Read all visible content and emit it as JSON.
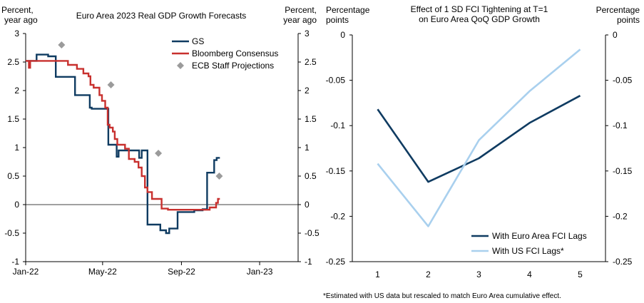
{
  "chart_data": [
    {
      "type": "line",
      "title": "Euro Area 2023 Real GDP Growth Forecasts",
      "ylabel_left": [
        "Percent,",
        "year ago"
      ],
      "ylabel_right": [
        "Percent,",
        "year ago"
      ],
      "ylim": [
        -1,
        3
      ],
      "yticks": [
        -1,
        -0.5,
        0,
        0.5,
        1,
        1.5,
        2,
        2.5,
        3
      ],
      "ytick_labels": [
        "-1",
        "-0.5",
        "0",
        "0.5",
        "1",
        "1.5",
        "2",
        "2.5",
        "3"
      ],
      "x_start": "Jan-22",
      "x_end": "Mar-23",
      "xlim_days": [
        0,
        425
      ],
      "xtick_labels": [
        "Jan-22",
        "May-22",
        "Sep-22",
        "Jan-23"
      ],
      "xtick_days": [
        0,
        120,
        243,
        365
      ],
      "legend_position": "top-right",
      "series": [
        {
          "name": "GS",
          "style": "step",
          "color": "#0f3b61",
          "points": [
            [
              0,
              2.52
            ],
            [
              17,
              2.52
            ],
            [
              17,
              2.63
            ],
            [
              35,
              2.63
            ],
            [
              35,
              2.6
            ],
            [
              47,
              2.6
            ],
            [
              47,
              2.24
            ],
            [
              77,
              2.24
            ],
            [
              77,
              1.92
            ],
            [
              100,
              1.92
            ],
            [
              100,
              1.7
            ],
            [
              103,
              1.7
            ],
            [
              103,
              1.68
            ],
            [
              129,
              1.68
            ],
            [
              129,
              1.05
            ],
            [
              142,
              1.05
            ],
            [
              142,
              0.84
            ],
            [
              145,
              0.84
            ],
            [
              145,
              0.95
            ],
            [
              177,
              0.95
            ],
            [
              177,
              0.82
            ],
            [
              181,
              0.82
            ],
            [
              181,
              0.95
            ],
            [
              186,
              0.95
            ],
            [
              186,
              0.95
            ],
            [
              190,
              0.95
            ],
            [
              190,
              -0.35
            ],
            [
              210,
              -0.35
            ],
            [
              210,
              -0.45
            ],
            [
              219,
              -0.45
            ],
            [
              219,
              -0.5
            ],
            [
              224,
              -0.5
            ],
            [
              224,
              -0.42
            ],
            [
              237,
              -0.42
            ],
            [
              237,
              -0.13
            ],
            [
              263,
              -0.13
            ],
            [
              263,
              -0.1
            ],
            [
              276,
              -0.1
            ],
            [
              276,
              -0.08
            ],
            [
              283,
              -0.08
            ],
            [
              283,
              0.56
            ],
            [
              294,
              0.56
            ],
            [
              294,
              0.78
            ],
            [
              298,
              0.78
            ],
            [
              298,
              0.82
            ],
            [
              303,
              0.82
            ]
          ]
        },
        {
          "name": "Bloomberg Consensus",
          "style": "step",
          "color": "#c8302e",
          "points": [
            [
              0,
              2.52
            ],
            [
              5,
              2.52
            ],
            [
              5,
              2.4
            ],
            [
              7,
              2.4
            ],
            [
              7,
              2.52
            ],
            [
              66,
              2.52
            ],
            [
              66,
              2.45
            ],
            [
              80,
              2.45
            ],
            [
              80,
              2.38
            ],
            [
              90,
              2.38
            ],
            [
              90,
              2.3
            ],
            [
              98,
              2.3
            ],
            [
              98,
              2.25
            ],
            [
              101,
              2.25
            ],
            [
              101,
              2.1
            ],
            [
              106,
              2.1
            ],
            [
              106,
              2.05
            ],
            [
              115,
              2.05
            ],
            [
              115,
              1.92
            ],
            [
              119,
              1.92
            ],
            [
              119,
              1.82
            ],
            [
              124,
              1.82
            ],
            [
              124,
              1.7
            ],
            [
              128,
              1.7
            ],
            [
              128,
              1.4
            ],
            [
              131,
              1.4
            ],
            [
              131,
              1.35
            ],
            [
              136,
              1.35
            ],
            [
              136,
              1.28
            ],
            [
              139,
              1.28
            ],
            [
              139,
              1.15
            ],
            [
              143,
              1.15
            ],
            [
              143,
              1.05
            ],
            [
              155,
              1.05
            ],
            [
              155,
              0.98
            ],
            [
              161,
              0.98
            ],
            [
              161,
              0.8
            ],
            [
              170,
              0.8
            ],
            [
              170,
              0.75
            ],
            [
              176,
              0.75
            ],
            [
              176,
              0.65
            ],
            [
              181,
              0.65
            ],
            [
              181,
              0.5
            ],
            [
              186,
              0.5
            ],
            [
              186,
              0.3
            ],
            [
              190,
              0.3
            ],
            [
              190,
              0.22
            ],
            [
              197,
              0.22
            ],
            [
              197,
              0.1
            ],
            [
              208,
              0.1
            ],
            [
              208,
              0.1
            ],
            [
              212,
              0.1
            ],
            [
              212,
              -0.07
            ],
            [
              222,
              -0.07
            ],
            [
              222,
              -0.09
            ],
            [
              287,
              -0.09
            ],
            [
              287,
              -0.05
            ],
            [
              297,
              -0.05
            ],
            [
              297,
              0.03
            ],
            [
              300,
              0.03
            ],
            [
              300,
              0.1
            ],
            [
              303,
              0.1
            ]
          ]
        },
        {
          "name": "ECB Staff Projections",
          "style": "marker",
          "marker": "diamond",
          "color": "#9b9b9b",
          "points": [
            [
              56,
              2.8
            ],
            [
              133,
              2.1
            ],
            [
              207,
              0.9
            ],
            [
              302,
              0.5
            ]
          ]
        }
      ]
    },
    {
      "type": "line",
      "title_lines": [
        "Effect of 1 SD FCI Tightening  at T=1",
        "on Euro Area QoQ GDP Growth"
      ],
      "ylabel_left": [
        "Percentage",
        "points"
      ],
      "ylabel_right": [
        "Percentage",
        "points"
      ],
      "categories": [
        1,
        2,
        3,
        4,
        5
      ],
      "xtick_labels": [
        "1",
        "2",
        "3",
        "4",
        "5"
      ],
      "ylim": [
        -0.25,
        0
      ],
      "yticks": [
        0,
        -0.05,
        -0.1,
        -0.15,
        -0.2,
        -0.25
      ],
      "ytick_labels": [
        "0",
        "-0.05",
        "-0.1",
        "-0.15",
        "-0.2",
        "-0.25"
      ],
      "legend_position": "bottom-right",
      "series": [
        {
          "name": "With Euro Area FCI Lags",
          "color": "#0f3b61",
          "values": [
            -0.082,
            -0.162,
            -0.136,
            -0.097,
            -0.067
          ]
        },
        {
          "name": "With US FCI Lags*",
          "color": "#a9d0ee",
          "values": [
            -0.142,
            -0.211,
            -0.116,
            -0.062,
            -0.016
          ]
        }
      ],
      "footnote": "*Estimated with US data but rescaled to match Euro Area cumulative effect."
    }
  ]
}
